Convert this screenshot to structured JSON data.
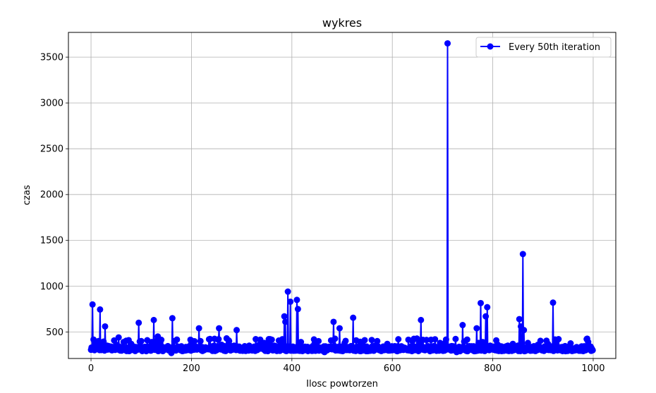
{
  "chart_data": {
    "type": "line",
    "title": "wykres",
    "xlabel": "Ilosc powtorzen",
    "ylabel": "czas",
    "xlim": [
      -45,
      1045
    ],
    "ylim": [
      210,
      3770
    ],
    "xticks": [
      0,
      200,
      400,
      600,
      800,
      1000
    ],
    "yticks": [
      500,
      1000,
      1500,
      2000,
      2500,
      3000,
      3500
    ],
    "grid": true,
    "legend_position": "top-right",
    "series": [
      {
        "name": "Every 50th iteration",
        "color": "#0000ff",
        "marker": "circle",
        "baseline": 320,
        "n": 1000,
        "peaks": [
          [
            0,
            305
          ],
          [
            3,
            800
          ],
          [
            8,
            390
          ],
          [
            12,
            360
          ],
          [
            15,
            400
          ],
          [
            18,
            745
          ],
          [
            22,
            370
          ],
          [
            25,
            395
          ],
          [
            28,
            560
          ],
          [
            32,
            350
          ],
          [
            40,
            340
          ],
          [
            50,
            360
          ],
          [
            55,
            440
          ],
          [
            60,
            330
          ],
          [
            65,
            390
          ],
          [
            75,
            410
          ],
          [
            80,
            370
          ],
          [
            90,
            335
          ],
          [
            95,
            600
          ],
          [
            100,
            400
          ],
          [
            105,
            300
          ],
          [
            110,
            290
          ],
          [
            120,
            310
          ],
          [
            125,
            630
          ],
          [
            130,
            400
          ],
          [
            133,
            450
          ],
          [
            138,
            380
          ],
          [
            145,
            300
          ],
          [
            150,
            310
          ],
          [
            160,
            270
          ],
          [
            162,
            650
          ],
          [
            166,
            400
          ],
          [
            175,
            320
          ],
          [
            190,
            300
          ],
          [
            198,
            415
          ],
          [
            200,
            380
          ],
          [
            210,
            310
          ],
          [
            215,
            540
          ],
          [
            218,
            400
          ],
          [
            225,
            300
          ],
          [
            235,
            420
          ],
          [
            245,
            350
          ],
          [
            255,
            540
          ],
          [
            260,
            360
          ],
          [
            270,
            430
          ],
          [
            275,
            400
          ],
          [
            285,
            350
          ],
          [
            290,
            520
          ],
          [
            295,
            340
          ],
          [
            305,
            330
          ],
          [
            315,
            350
          ],
          [
            325,
            340
          ],
          [
            335,
            360
          ],
          [
            345,
            380
          ],
          [
            355,
            370
          ],
          [
            365,
            350
          ],
          [
            378,
            360
          ],
          [
            385,
            670
          ],
          [
            387,
            610
          ],
          [
            392,
            940
          ],
          [
            397,
            830
          ],
          [
            402,
            340
          ],
          [
            410,
            850
          ],
          [
            412,
            750
          ],
          [
            418,
            390
          ],
          [
            425,
            300
          ],
          [
            435,
            310
          ],
          [
            445,
            370
          ],
          [
            450,
            300
          ],
          [
            465,
            280
          ],
          [
            480,
            310
          ],
          [
            483,
            610
          ],
          [
            490,
            300
          ],
          [
            495,
            540
          ],
          [
            505,
            380
          ],
          [
            515,
            300
          ],
          [
            522,
            655
          ],
          [
            530,
            330
          ],
          [
            540,
            360
          ],
          [
            545,
            410
          ],
          [
            555,
            300
          ],
          [
            565,
            350
          ],
          [
            570,
            400
          ],
          [
            580,
            330
          ],
          [
            590,
            370
          ],
          [
            600,
            300
          ],
          [
            610,
            290
          ],
          [
            620,
            310
          ],
          [
            630,
            300
          ],
          [
            640,
            400
          ],
          [
            650,
            310
          ],
          [
            657,
            630
          ],
          [
            665,
            300
          ],
          [
            675,
            290
          ],
          [
            685,
            420
          ],
          [
            695,
            380
          ],
          [
            705,
            380
          ],
          [
            710,
            3650
          ],
          [
            715,
            340
          ],
          [
            720,
            300
          ],
          [
            728,
            280
          ],
          [
            735,
            290
          ],
          [
            740,
            575
          ],
          [
            745,
            300
          ],
          [
            750,
            290
          ],
          [
            760,
            300
          ],
          [
            768,
            540
          ],
          [
            772,
            380
          ],
          [
            776,
            815
          ],
          [
            780,
            390
          ],
          [
            786,
            670
          ],
          [
            789,
            770
          ],
          [
            795,
            350
          ],
          [
            800,
            330
          ],
          [
            810,
            360
          ],
          [
            820,
            330
          ],
          [
            830,
            350
          ],
          [
            840,
            370
          ],
          [
            850,
            350
          ],
          [
            853,
            640
          ],
          [
            856,
            560
          ],
          [
            860,
            1350
          ],
          [
            862,
            520
          ],
          [
            870,
            380
          ],
          [
            880,
            340
          ],
          [
            890,
            360
          ],
          [
            900,
            330
          ],
          [
            910,
            370
          ],
          [
            920,
            820
          ],
          [
            925,
            380
          ],
          [
            935,
            300
          ],
          [
            945,
            290
          ],
          [
            955,
            375
          ],
          [
            965,
            300
          ],
          [
            975,
            310
          ],
          [
            985,
            300
          ],
          [
            990,
            390
          ],
          [
            995,
            340
          ],
          [
            999,
            300
          ]
        ]
      }
    ]
  }
}
